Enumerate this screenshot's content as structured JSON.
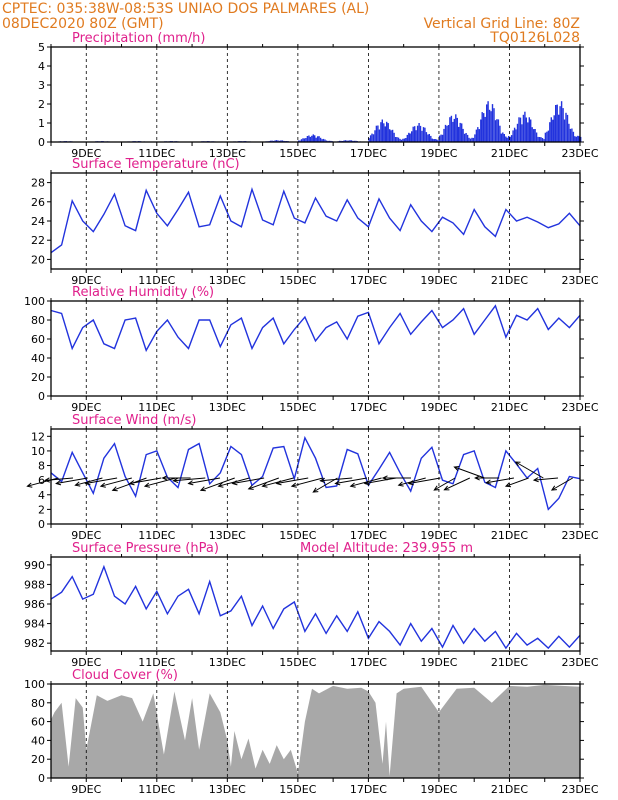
{
  "header": {
    "line1_left": "CPTEC:   035:38W-08:53S  UNIAO DOS PALMARES (AL)",
    "line2_left": "08DEC2020 80Z (GMT)",
    "line2_right": "Vertical Grid Line: 80Z",
    "line3_right": "TQ0126L028"
  },
  "colors": {
    "header": "#e07b20",
    "titles": "#e0208c",
    "series": "#2233dd",
    "cloud": "#a8a8a8",
    "frame": "#000000"
  },
  "chart_data": [
    {
      "id": "precip",
      "type": "bar",
      "title": "Precipitation (mm/h)",
      "x_ticks": [
        "9DEC",
        "11DEC",
        "13DEC",
        "15DEC",
        "17DEC",
        "19DEC",
        "21DEC",
        "23DEC"
      ],
      "x_range": [
        8.0,
        23.0
      ],
      "ylim": [
        0,
        5
      ],
      "y_ticks": [
        0,
        1,
        2,
        3,
        4,
        5
      ],
      "daily_peak_mm_h": [
        [
          "8DEC",
          0.05
        ],
        [
          "9DEC",
          0.05
        ],
        [
          "10DEC",
          0.05
        ],
        [
          "11DEC",
          0.05
        ],
        [
          "12DEC",
          0.05
        ],
        [
          "13DEC",
          0.05
        ],
        [
          "14DEC",
          0.1
        ],
        [
          "15DEC",
          0.4
        ],
        [
          "16DEC",
          0.1
        ],
        [
          "17DEC",
          1.2
        ],
        [
          "18DEC",
          1.0
        ],
        [
          "19DEC",
          1.5
        ],
        [
          "20DEC",
          2.2
        ],
        [
          "21DEC",
          1.6
        ],
        [
          "22DEC",
          2.2
        ],
        [
          "23DEC",
          1.4
        ]
      ]
    },
    {
      "id": "temp",
      "type": "line",
      "title": "Surface Temperature (nC)",
      "x_ticks": [
        "9DEC",
        "11DEC",
        "13DEC",
        "15DEC",
        "17DEC",
        "19DEC",
        "21DEC",
        "23DEC"
      ],
      "x_range": [
        8.0,
        23.0
      ],
      "ylim": [
        19,
        29
      ],
      "y_ticks": [
        20,
        22,
        24,
        26,
        28
      ],
      "x": [
        8.0,
        8.3,
        8.6,
        8.9,
        9.2,
        9.5,
        9.8,
        10.1,
        10.4,
        10.7,
        11.0,
        11.3,
        11.6,
        11.9,
        12.2,
        12.5,
        12.8,
        13.1,
        13.4,
        13.7,
        14.0,
        14.3,
        14.6,
        14.9,
        15.2,
        15.5,
        15.8,
        16.1,
        16.4,
        16.7,
        17.0,
        17.3,
        17.6,
        17.9,
        18.2,
        18.5,
        18.8,
        19.1,
        19.4,
        19.7,
        20.0,
        20.3,
        20.6,
        20.9,
        21.2,
        21.5,
        21.8,
        22.1,
        22.4,
        22.7,
        23.0
      ],
      "values": [
        20.7,
        21.5,
        26.1,
        24.0,
        22.9,
        24.7,
        26.8,
        23.5,
        23.0,
        27.2,
        24.8,
        23.5,
        25.2,
        27.0,
        23.4,
        23.6,
        26.6,
        24.0,
        23.4,
        27.3,
        24.1,
        23.6,
        27.1,
        24.3,
        23.8,
        26.4,
        24.5,
        24.0,
        26.2,
        24.3,
        23.4,
        26.3,
        24.3,
        23.0,
        25.7,
        24.0,
        22.9,
        24.4,
        23.8,
        22.6,
        25.2,
        23.4,
        22.4,
        25.2,
        24.0,
        24.4,
        23.9,
        23.3,
        23.7,
        24.8,
        23.5
      ]
    },
    {
      "id": "rh",
      "type": "line",
      "title": "Relative Humidity (%)",
      "x_ticks": [
        "9DEC",
        "11DEC",
        "13DEC",
        "15DEC",
        "17DEC",
        "19DEC",
        "21DEC",
        "23DEC"
      ],
      "x_range": [
        8.0,
        23.0
      ],
      "ylim": [
        0,
        100
      ],
      "y_ticks": [
        0,
        20,
        40,
        60,
        80,
        100
      ],
      "x": [
        8.0,
        8.3,
        8.6,
        8.9,
        9.2,
        9.5,
        9.8,
        10.1,
        10.4,
        10.7,
        11.0,
        11.3,
        11.6,
        11.9,
        12.2,
        12.5,
        12.8,
        13.1,
        13.4,
        13.7,
        14.0,
        14.3,
        14.6,
        14.9,
        15.2,
        15.5,
        15.8,
        16.1,
        16.4,
        16.7,
        17.0,
        17.3,
        17.6,
        17.9,
        18.2,
        18.5,
        18.8,
        19.1,
        19.4,
        19.7,
        20.0,
        20.3,
        20.6,
        20.9,
        21.2,
        21.5,
        21.8,
        22.1,
        22.4,
        22.7,
        23.0
      ],
      "values": [
        90,
        87,
        50,
        72,
        80,
        55,
        50,
        80,
        82,
        48,
        68,
        80,
        62,
        50,
        80,
        80,
        52,
        75,
        82,
        50,
        72,
        82,
        55,
        70,
        83,
        58,
        72,
        78,
        60,
        84,
        88,
        55,
        72,
        87,
        65,
        78,
        90,
        72,
        80,
        92,
        65,
        80,
        95,
        62,
        85,
        80,
        92,
        70,
        82,
        72,
        85
      ]
    },
    {
      "id": "wind",
      "type": "line",
      "title": "Surface Wind (m/s)",
      "x_ticks": [
        "9DEC",
        "11DEC",
        "13DEC",
        "15DEC",
        "17DEC",
        "19DEC",
        "21DEC",
        "23DEC"
      ],
      "x_range": [
        8.0,
        23.0
      ],
      "ylim": [
        0,
        13
      ],
      "y_ticks": [
        0,
        2,
        4,
        6,
        8,
        10,
        12
      ],
      "x": [
        8.0,
        8.3,
        8.6,
        8.9,
        9.2,
        9.5,
        9.8,
        10.1,
        10.4,
        10.7,
        11.0,
        11.3,
        11.6,
        11.9,
        12.2,
        12.5,
        12.8,
        13.1,
        13.4,
        13.7,
        14.0,
        14.3,
        14.6,
        14.9,
        15.2,
        15.5,
        15.8,
        16.1,
        16.4,
        16.7,
        17.0,
        17.3,
        17.6,
        17.9,
        18.2,
        18.5,
        18.8,
        19.1,
        19.4,
        19.7,
        20.0,
        20.3,
        20.6,
        20.9,
        21.2,
        21.5,
        21.8,
        22.1,
        22.4,
        22.7,
        23.0
      ],
      "values": [
        7.0,
        5.8,
        9.8,
        7.0,
        4.2,
        9.0,
        11.0,
        6.5,
        3.8,
        9.5,
        10.0,
        6.4,
        5.0,
        10.2,
        11.0,
        5.5,
        7.0,
        10.6,
        9.5,
        5.3,
        6.5,
        10.4,
        10.6,
        6.2,
        11.8,
        9.0,
        5.0,
        5.2,
        10.2,
        9.6,
        5.3,
        7.5,
        9.8,
        7.0,
        4.5,
        9.0,
        10.5,
        6.0,
        5.5,
        9.5,
        10.0,
        5.7,
        5.0,
        10.0,
        8.2,
        6.3,
        7.6,
        2.0,
        3.5,
        6.5,
        6.2
      ],
      "vectors_deg_from": [
        75,
        85,
        80,
        75,
        80,
        75,
        70,
        80,
        75,
        90,
        85,
        80,
        70,
        75,
        80,
        70,
        75,
        80,
        75,
        60,
        85,
        80,
        75,
        80,
        90,
        75,
        80,
        60,
        65,
        110,
        90,
        80,
        70,
        120,
        85,
        60
      ],
      "vectors_speed": [
        6,
        5,
        6,
        5,
        6,
        6,
        7,
        6,
        6,
        5,
        6,
        6,
        7,
        6,
        6,
        6,
        6,
        6,
        6,
        5,
        6,
        6,
        6,
        6,
        5,
        5,
        6,
        4,
        5,
        6,
        4,
        5,
        4,
        6,
        4,
        4
      ]
    },
    {
      "id": "pressure",
      "type": "line",
      "title": "Surface Pressure (hPa)",
      "annotation": "Model Altitude: 239.955 m",
      "x_ticks": [
        "9DEC",
        "11DEC",
        "13DEC",
        "15DEC",
        "17DEC",
        "19DEC",
        "21DEC",
        "23DEC"
      ],
      "x_range": [
        8.0,
        23.0
      ],
      "ylim": [
        981.2,
        990.8
      ],
      "y_ticks": [
        982,
        984,
        986,
        988,
        990
      ],
      "x": [
        8.0,
        8.3,
        8.6,
        8.9,
        9.2,
        9.5,
        9.8,
        10.1,
        10.4,
        10.7,
        11.0,
        11.3,
        11.6,
        11.9,
        12.2,
        12.5,
        12.8,
        13.1,
        13.4,
        13.7,
        14.0,
        14.3,
        14.6,
        14.9,
        15.2,
        15.5,
        15.8,
        16.1,
        16.4,
        16.7,
        17.0,
        17.3,
        17.6,
        17.9,
        18.2,
        18.5,
        18.8,
        19.1,
        19.4,
        19.7,
        20.0,
        20.3,
        20.6,
        20.9,
        21.2,
        21.5,
        21.8,
        22.1,
        22.4,
        22.7,
        23.0
      ],
      "values": [
        986.5,
        987.2,
        988.8,
        986.5,
        987.0,
        989.8,
        986.8,
        986.0,
        987.8,
        985.5,
        987.3,
        985.0,
        986.8,
        987.5,
        985.0,
        988.3,
        984.8,
        985.3,
        986.8,
        983.8,
        985.8,
        983.5,
        985.5,
        986.2,
        983.2,
        985.0,
        983.0,
        984.8,
        983.2,
        985.2,
        982.5,
        984.2,
        983.2,
        981.8,
        984.0,
        982.2,
        983.5,
        981.6,
        983.8,
        982.0,
        983.5,
        982.2,
        983.2,
        981.5,
        983.0,
        981.8,
        982.5,
        981.5,
        982.7,
        981.6,
        982.8
      ]
    },
    {
      "id": "cloud",
      "type": "area",
      "title": "Cloud Cover (%)",
      "x_ticks": [
        "9DEC",
        "11DEC",
        "13DEC",
        "15DEC",
        "17DEC",
        "19DEC",
        "21DEC",
        "23DEC"
      ],
      "x_range": [
        8.0,
        23.0
      ],
      "ylim": [
        0,
        100
      ],
      "y_ticks": [
        0,
        20,
        40,
        60,
        80,
        100
      ],
      "x": [
        8.0,
        8.1,
        8.3,
        8.5,
        8.7,
        8.9,
        9.0,
        9.3,
        9.6,
        10.0,
        10.3,
        10.6,
        10.9,
        11.2,
        11.5,
        11.8,
        12.0,
        12.2,
        12.5,
        12.8,
        13.0,
        13.1,
        13.2,
        13.4,
        13.6,
        13.8,
        14.0,
        14.2,
        14.4,
        14.6,
        14.8,
        15.0,
        15.2,
        15.4,
        15.6,
        16.0,
        16.4,
        16.8,
        17.0,
        17.2,
        17.4,
        17.5,
        17.6,
        17.8,
        18.0,
        18.5,
        19.0,
        19.5,
        20.0,
        20.5,
        21.0,
        21.5,
        22.0,
        22.5,
        23.0
      ],
      "values": [
        62,
        70,
        80,
        12,
        85,
        75,
        30,
        88,
        82,
        88,
        85,
        60,
        90,
        25,
        92,
        40,
        85,
        30,
        90,
        70,
        40,
        12,
        50,
        20,
        42,
        10,
        30,
        15,
        35,
        20,
        30,
        5,
        60,
        95,
        90,
        98,
        95,
        96,
        92,
        80,
        15,
        60,
        2,
        90,
        95,
        97,
        70,
        95,
        96,
        80,
        98,
        97,
        99,
        98,
        97
      ]
    }
  ]
}
